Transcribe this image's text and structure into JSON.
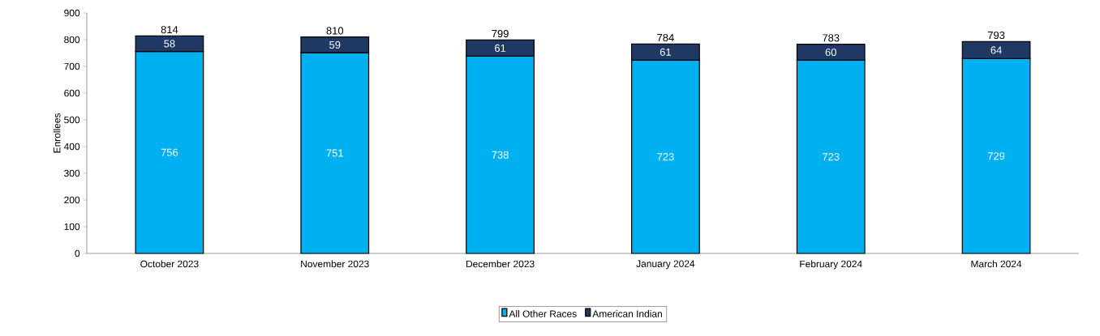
{
  "chart_data": {
    "type": "bar",
    "stacked": true,
    "ylabel": "Enrollees",
    "categories": [
      "October 2023",
      "November 2023",
      "December 2023",
      "January 2024",
      "February 2024",
      "March 2024"
    ],
    "series": [
      {
        "name": "All Other Races",
        "color": "#00b0f0",
        "values": [
          756,
          751,
          738,
          723,
          723,
          729
        ]
      },
      {
        "name": "American Indian",
        "color": "#1f3864",
        "values": [
          58,
          59,
          61,
          61,
          60,
          64
        ]
      }
    ],
    "totals": [
      "814",
      "810",
      "799",
      "784",
      "783",
      "793"
    ],
    "data_labels": true,
    "ylim": [
      0,
      900
    ],
    "yticks": [
      0,
      100,
      200,
      300,
      400,
      500,
      600,
      700,
      800,
      900
    ],
    "grid": false,
    "legend": "bottom"
  }
}
